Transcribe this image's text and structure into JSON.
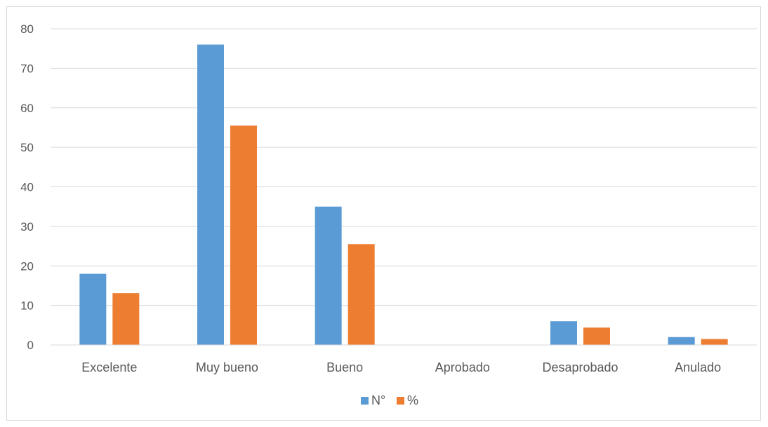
{
  "chart_data": {
    "type": "bar",
    "categories": [
      "Excelente",
      "Muy bueno",
      "Bueno",
      "Aprobado",
      "Desaprobado",
      "Anulado"
    ],
    "series": [
      {
        "name": "N°",
        "values": [
          18,
          76,
          35,
          0,
          6,
          2
        ],
        "color": "#5b9bd5"
      },
      {
        "name": "%",
        "values": [
          13.1,
          55.5,
          25.5,
          0,
          4.4,
          1.5
        ],
        "color": "#ed7d31"
      }
    ],
    "ylim": [
      0,
      80
    ],
    "yticks": [
      "0",
      "10",
      "20",
      "30",
      "40",
      "50",
      "60",
      "70",
      "80"
    ],
    "grid": true,
    "legend_position": "bottom",
    "gridline_color": "#d9d9d9",
    "axis_color": "#d9d9d9"
  }
}
